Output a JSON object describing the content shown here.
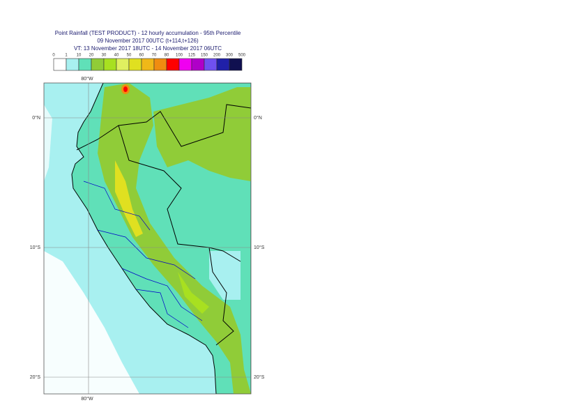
{
  "header": {
    "lines": [
      "Point Rainfall (TEST PRODUCT) - 12 hourly accumulation - 95th Percentile",
      "09 November 2017 00UTC (t+114,t+126)",
      "VT: 13 November 2017 18UTC - 14 November 2017 06UTC"
    ]
  },
  "legend": {
    "labels": [
      0,
      1,
      10,
      20,
      30,
      40,
      50,
      60,
      70,
      80,
      100,
      125,
      150,
      200,
      300,
      500
    ],
    "colors": [
      "#ffffff",
      "#a8f0f0",
      "#60e0b8",
      "#90cc38",
      "#a8e020",
      "#e0f060",
      "#e0e020",
      "#f0b818",
      "#f08c10",
      "#ff0000",
      "#f000f0",
      "#b000c8",
      "#7050f0",
      "#2020a8",
      "#101050"
    ]
  },
  "map": {
    "lon_labels": [
      "80°W"
    ],
    "lat_labels": [
      "0°N",
      "10°S",
      "20°S"
    ]
  }
}
